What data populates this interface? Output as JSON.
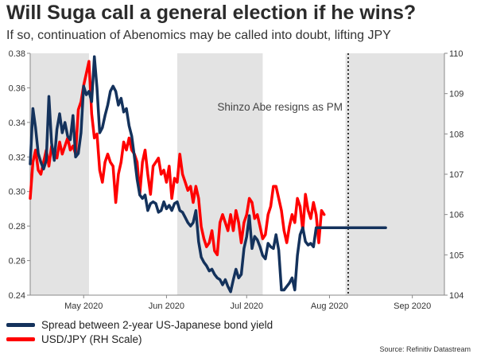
{
  "title": "Will Suga call a general election if he wins?",
  "subtitle": "If so, continuation of Abenomics may be called into doubt, lifting JPY",
  "source": "Source: Refinitiv Datastream",
  "chart_data": {
    "type": "line",
    "title": "Will Suga call a general election if he wins?",
    "x_ticks": [
      {
        "label": "May 2020",
        "day": 20
      },
      {
        "label": "Jun 2020",
        "day": 51
      },
      {
        "label": "Jul 2020",
        "day": 81
      },
      {
        "label": "Aug 2020",
        "day": 112
      },
      {
        "label": "Sep 2020",
        "day": 143
      }
    ],
    "x_range": [
      0,
      155
    ],
    "left_axis": {
      "min": 0.24,
      "max": 0.38,
      "ticks": [
        "0.24",
        "0.26",
        "0.28",
        "0.30",
        "0.32",
        "0.34",
        "0.36",
        "0.38"
      ]
    },
    "right_axis": {
      "min": 104,
      "max": 110,
      "ticks": [
        "104",
        "105",
        "106",
        "107",
        "108",
        "109",
        "110"
      ]
    },
    "shaded_periods": [
      [
        0,
        22
      ],
      [
        55,
        87
      ],
      [
        118,
        155
      ]
    ],
    "annotation": {
      "text": "Shinzo Abe resigns as PM",
      "day": 119
    },
    "series": [
      {
        "name": "Spread between 2-year US-Japanese bond yield",
        "color": "#14325c",
        "axis": "left",
        "x": [
          0,
          1,
          2,
          3,
          4,
          5,
          6,
          7,
          8,
          9,
          10,
          11,
          12,
          13,
          14,
          15,
          16,
          17,
          18,
          19,
          20,
          21,
          22,
          23,
          24,
          25,
          26,
          27,
          28,
          29,
          30,
          31,
          32,
          33,
          34,
          35,
          36,
          37,
          38,
          39,
          40,
          41,
          42,
          43,
          44,
          45,
          46,
          47,
          48,
          49,
          50,
          51,
          52,
          53,
          54,
          55,
          56,
          57,
          58,
          59,
          60,
          61,
          62,
          63,
          64,
          65,
          66,
          67,
          68,
          69,
          70,
          71,
          72,
          73,
          74,
          75,
          76,
          77,
          78,
          79,
          80,
          81,
          82,
          83,
          84,
          85,
          86,
          87,
          88,
          89,
          90,
          91,
          92,
          93,
          94,
          95,
          96,
          97,
          98,
          99,
          100,
          101,
          102,
          103,
          104,
          105,
          106,
          107,
          108,
          109,
          110,
          111,
          112,
          113,
          114,
          115,
          116,
          117,
          118,
          119,
          120,
          121,
          122,
          123,
          124,
          125,
          126,
          127,
          128,
          129,
          130,
          131,
          132,
          133
        ],
        "values": [
          0.316,
          0.348,
          0.337,
          0.322,
          0.317,
          0.313,
          0.318,
          0.355,
          0.328,
          0.318,
          0.336,
          0.345,
          0.334,
          0.34,
          0.332,
          0.33,
          0.344,
          0.32,
          0.322,
          0.334,
          0.361,
          0.356,
          0.358,
          0.352,
          0.378,
          0.36,
          0.334,
          0.337,
          0.344,
          0.35,
          0.358,
          0.361,
          0.358,
          0.35,
          0.354,
          0.346,
          0.348,
          0.338,
          0.332,
          0.32,
          0.307,
          0.298,
          0.296,
          0.298,
          0.289,
          0.293,
          0.294,
          0.293,
          0.288,
          0.289,
          0.294,
          0.29,
          0.292,
          0.289,
          0.293,
          0.294,
          0.289,
          0.288,
          0.285,
          0.282,
          0.28,
          0.282,
          0.289,
          0.271,
          0.262,
          0.259,
          0.257,
          0.254,
          0.255,
          0.252,
          0.25,
          0.249,
          0.246,
          0.249,
          0.245,
          0.242,
          0.249,
          0.255,
          0.25,
          0.252,
          0.267,
          0.274,
          0.286,
          0.267,
          0.274,
          0.272,
          0.268,
          0.263,
          0.261,
          0.27,
          0.268,
          0.267,
          0.275,
          0.266,
          0.243,
          0.243,
          0.245,
          0.247,
          0.25,
          0.243,
          0.263,
          0.275,
          0.279,
          0.271,
          0.269,
          0.27,
          0.268,
          0.279,
          0.279,
          0.279,
          0.279,
          0.279,
          0.279,
          0.279,
          0.279,
          0.279,
          0.279,
          0.279,
          0.279,
          0.279,
          0.279,
          0.279,
          0.279,
          0.279,
          0.279,
          0.279,
          0.279,
          0.279,
          0.279,
          0.279,
          0.279,
          0.279,
          0.279,
          0.279
        ]
      },
      {
        "name": "USD/JPY (RH Scale)",
        "color": "#ff0000",
        "axis": "right",
        "x": [
          0,
          1,
          2,
          3,
          4,
          5,
          6,
          7,
          8,
          9,
          10,
          11,
          12,
          13,
          14,
          15,
          16,
          17,
          18,
          19,
          20,
          21,
          22,
          23,
          24,
          25,
          26,
          27,
          28,
          29,
          30,
          31,
          32,
          33,
          34,
          35,
          36,
          37,
          38,
          39,
          40,
          41,
          42,
          43,
          44,
          45,
          46,
          47,
          48,
          49,
          50,
          51,
          52,
          53,
          54,
          55,
          56,
          57,
          58,
          59,
          60,
          61,
          62,
          63,
          64,
          65,
          66,
          67,
          68,
          69,
          70,
          71,
          72,
          73,
          74,
          75,
          76,
          77,
          78,
          79,
          80,
          81,
          82,
          83,
          84,
          85,
          86,
          87,
          88,
          89,
          90,
          91,
          92,
          93,
          94,
          95,
          96,
          97,
          98,
          99,
          100,
          101,
          102,
          103,
          104,
          105,
          106,
          107,
          108,
          109,
          110
        ],
        "values": [
          106.4,
          107.3,
          107.6,
          107.1,
          107.0,
          107.3,
          107.6,
          107.2,
          107.7,
          107.5,
          107.4,
          107.8,
          107.5,
          107.7,
          107.9,
          107.6,
          107.7,
          107.5,
          108.6,
          108.8,
          109.2,
          109.5,
          109.8,
          108.5,
          107.9,
          108.0,
          107.1,
          106.8,
          107.3,
          107.5,
          107.3,
          107.2,
          106.3,
          107.0,
          107.3,
          107.8,
          107.6,
          107.9,
          107.6,
          107.5,
          107.3,
          106.5,
          107.3,
          107.6,
          107.0,
          106.5,
          107.2,
          107.3,
          107.4,
          107.0,
          107.1,
          106.8,
          107.2,
          106.4,
          106.9,
          106.8,
          107.5,
          107.0,
          106.8,
          106.6,
          106.7,
          106.3,
          106.7,
          106.4,
          105.7,
          105.4,
          105.2,
          105.3,
          105.6,
          105.1,
          105.0,
          105.8,
          106.0,
          105.8,
          105.6,
          106.0,
          105.6,
          106.1,
          105.8,
          105.3,
          105.8,
          106.0,
          106.4,
          106.3,
          105.9,
          106.0,
          105.7,
          105.4,
          105.5,
          106.0,
          106.2,
          106.7,
          106.7,
          106.4,
          106.1,
          105.6,
          105.3,
          105.7,
          106.0,
          105.8,
          106.4,
          106.2,
          105.6,
          106.5,
          106.1,
          105.9,
          106.3,
          106.0,
          105.3,
          106.1,
          106.0
        ]
      }
    ]
  }
}
